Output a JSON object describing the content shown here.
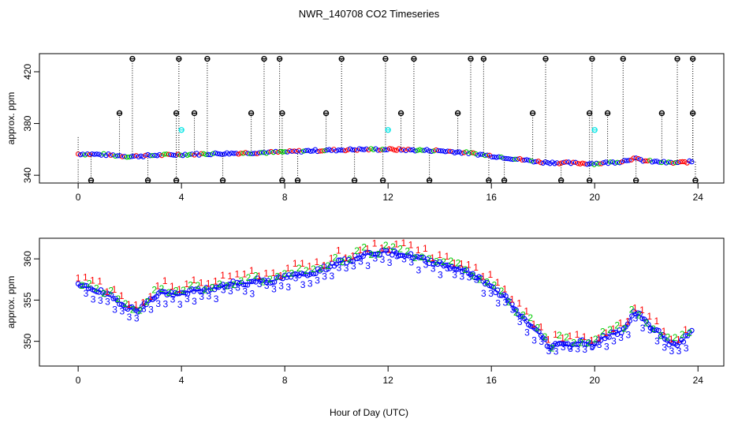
{
  "chart_data": {
    "title": "NWR_140708  CO2 Timeseries",
    "xlabel": "Hour of Day (UTC)",
    "colors": {
      "black": "#000000",
      "red": "#ff0000",
      "green": "#00cc00",
      "blue": "#0000ff",
      "cyan": "#00e5e5"
    },
    "panels": [
      {
        "type": "scatter",
        "ylabel": "approx. ppm",
        "xlim": [
          -1.5,
          25
        ],
        "ylim": [
          334,
          434
        ],
        "xticks": [
          0,
          4,
          8,
          12,
          16,
          20,
          24
        ],
        "yticks": [
          340,
          380,
          420
        ],
        "baseline": [
          [
            0.0,
            356.5
          ],
          [
            1.0,
            356.0
          ],
          [
            2.0,
            354.5
          ],
          [
            3.0,
            355.5
          ],
          [
            4.0,
            356.0
          ],
          [
            5.0,
            356.5
          ],
          [
            6.0,
            357.0
          ],
          [
            7.0,
            357.5
          ],
          [
            8.0,
            358.0
          ],
          [
            9.0,
            359.0
          ],
          [
            10.0,
            359.5
          ],
          [
            11.0,
            360.0
          ],
          [
            12.0,
            360.0
          ],
          [
            13.0,
            359.5
          ],
          [
            14.0,
            359.0
          ],
          [
            15.0,
            357.5
          ],
          [
            16.0,
            355.0
          ],
          [
            17.0,
            352.5
          ],
          [
            18.0,
            350.0
          ],
          [
            19.0,
            349.5
          ],
          [
            20.0,
            349.0
          ],
          [
            21.0,
            350.5
          ],
          [
            21.5,
            353.0
          ],
          [
            22.0,
            351.0
          ],
          [
            23.0,
            349.5
          ],
          [
            23.8,
            350.5
          ]
        ],
        "flags_high": [
          2.1,
          3.9,
          5.0,
          7.2,
          7.8,
          10.2,
          11.9,
          13.0,
          15.2,
          15.7,
          18.1,
          19.9,
          21.1,
          23.2,
          23.8
        ],
        "flags_mid": [
          1.6,
          3.8,
          4.5,
          6.7,
          7.9,
          9.6,
          12.5,
          14.7,
          17.6,
          19.8,
          20.5,
          22.6,
          23.8
        ],
        "flags_low": [
          0.5,
          2.7,
          3.8,
          5.6,
          7.9,
          8.5,
          10.7,
          11.8,
          13.6,
          15.9,
          16.5,
          18.7,
          19.8,
          21.6,
          23.9
        ],
        "flags_cyan": [
          [
            4.0,
            375.0
          ],
          [
            12.0,
            375.0
          ],
          [
            20.0,
            375.0
          ]
        ]
      },
      {
        "type": "scatter",
        "ylabel": "approx. ppm",
        "xlim": [
          -1.5,
          25
        ],
        "ylim": [
          347,
          362.5
        ],
        "xticks": [
          0,
          4,
          8,
          12,
          16,
          20,
          24
        ],
        "yticks": [
          350,
          355,
          360
        ],
        "series": [
          {
            "name": "1",
            "color": "#ff0000"
          },
          {
            "name": "2",
            "color": "#00cc00"
          },
          {
            "name": "3",
            "color": "#0000ff"
          }
        ],
        "baseline": [
          [
            0.0,
            356.7
          ],
          [
            0.5,
            356.5
          ],
          [
            1.0,
            355.8
          ],
          [
            1.5,
            355.0
          ],
          [
            2.0,
            354.0
          ],
          [
            2.3,
            353.8
          ],
          [
            2.8,
            355.0
          ],
          [
            3.2,
            356.0
          ],
          [
            3.8,
            355.6
          ],
          [
            4.2,
            356.0
          ],
          [
            5.0,
            356.3
          ],
          [
            5.5,
            356.6
          ],
          [
            6.0,
            357.0
          ],
          [
            6.5,
            357.0
          ],
          [
            7.0,
            357.5
          ],
          [
            7.5,
            357.3
          ],
          [
            8.0,
            357.8
          ],
          [
            8.5,
            358.0
          ],
          [
            9.0,
            358.3
          ],
          [
            9.5,
            358.8
          ],
          [
            10.0,
            359.5
          ],
          [
            10.5,
            359.8
          ],
          [
            11.0,
            360.5
          ],
          [
            11.5,
            360.8
          ],
          [
            12.0,
            360.8
          ],
          [
            12.5,
            360.6
          ],
          [
            13.0,
            360.3
          ],
          [
            13.5,
            359.8
          ],
          [
            14.0,
            359.5
          ],
          [
            14.5,
            359.0
          ],
          [
            15.0,
            358.5
          ],
          [
            15.5,
            357.8
          ],
          [
            16.0,
            356.5
          ],
          [
            16.5,
            355.5
          ],
          [
            17.0,
            353.5
          ],
          [
            17.5,
            352.0
          ],
          [
            18.0,
            350.5
          ],
          [
            18.3,
            349.0
          ],
          [
            18.6,
            350.0
          ],
          [
            19.0,
            349.5
          ],
          [
            19.5,
            350.0
          ],
          [
            20.0,
            349.5
          ],
          [
            20.3,
            350.5
          ],
          [
            20.8,
            351.0
          ],
          [
            21.2,
            351.5
          ],
          [
            21.5,
            353.5
          ],
          [
            21.8,
            353.0
          ],
          [
            22.1,
            352.0
          ],
          [
            22.5,
            351.0
          ],
          [
            23.0,
            349.5
          ],
          [
            23.4,
            350.0
          ],
          [
            23.8,
            351.5
          ]
        ]
      }
    ]
  }
}
